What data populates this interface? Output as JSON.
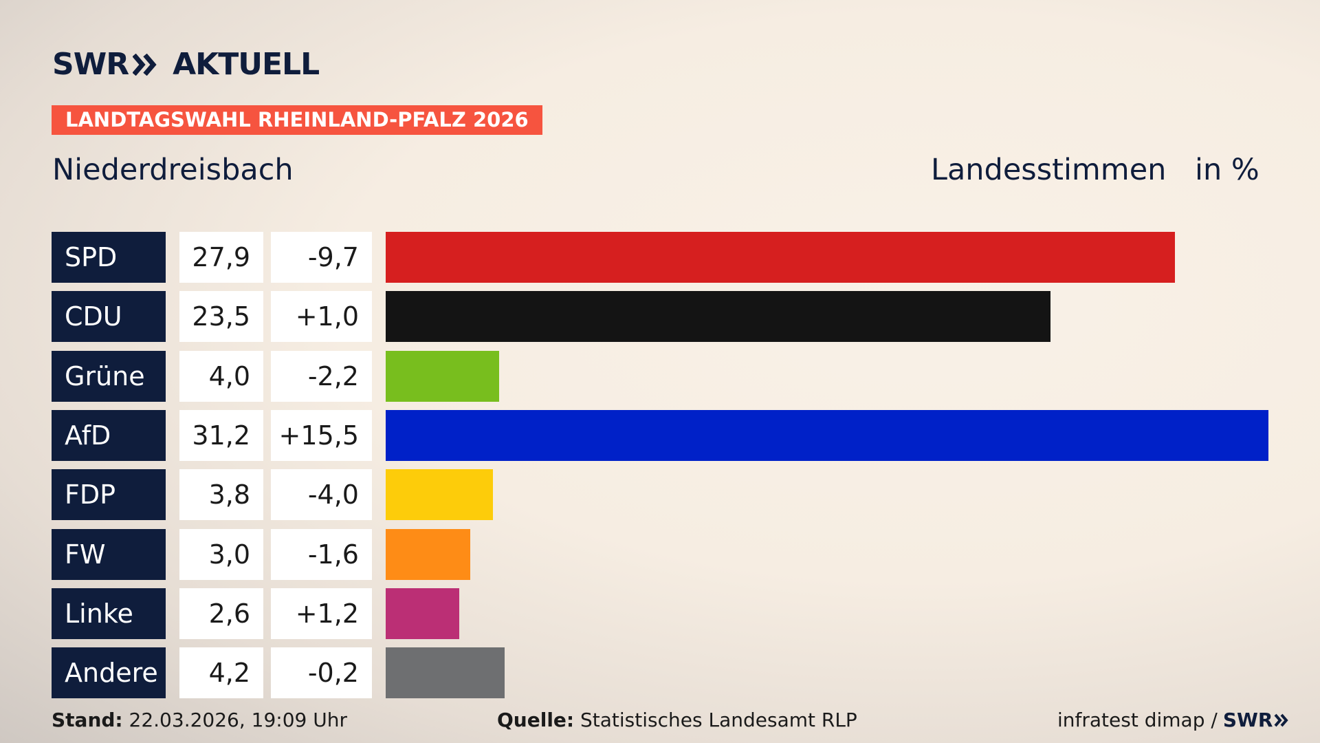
{
  "brand": {
    "logo": "SWR",
    "section": "AKTUELL"
  },
  "chart_data": {
    "type": "bar",
    "kicker": "LANDTAGSWAHL RHEINLAND-PFALZ 2026",
    "title": "Niederdreisbach",
    "measure": "Landesstimmen",
    "unit": "in %",
    "categories": [
      "SPD",
      "CDU",
      "Grüne",
      "AfD",
      "FDP",
      "FW",
      "Linke",
      "Andere"
    ],
    "values": [
      27.9,
      23.5,
      4.0,
      31.2,
      3.8,
      3.0,
      2.6,
      4.2
    ],
    "value_labels": [
      "27,9",
      "23,5",
      "4,0",
      "31,2",
      "3,8",
      "3,0",
      "2,6",
      "4,2"
    ],
    "changes": [
      -9.7,
      1.0,
      -2.2,
      15.5,
      -4.0,
      -1.6,
      1.2,
      -0.2
    ],
    "change_labels": [
      "-9,7",
      "+1,0",
      "-2,2",
      "+15,5",
      "-4,0",
      "-1,6",
      "+1,2",
      "-0,2"
    ],
    "colors": [
      "#d61f1f",
      "#141414",
      "#78be1e",
      "#0021c8",
      "#fdcc0a",
      "#fe8c16",
      "#bb2f75",
      "#6e6f71"
    ]
  },
  "footer": {
    "stand_label": "Stand:",
    "stand": "22.03.2026, 19:09 Uhr",
    "source_label": "Quelle:",
    "source": "Statistisches Landesamt RLP",
    "credit": "infratest dimap /",
    "credit_logo": "SWR"
  }
}
